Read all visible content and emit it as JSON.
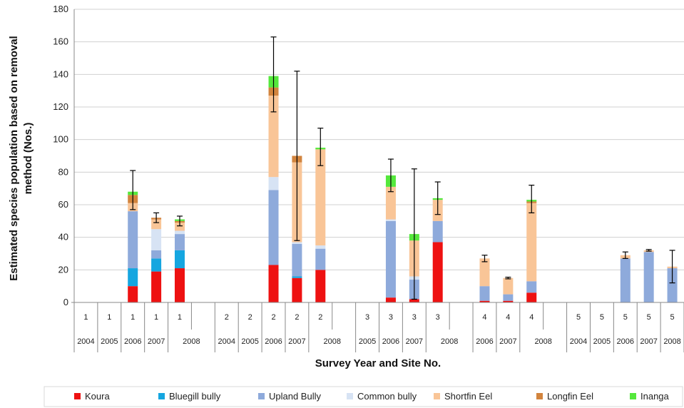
{
  "chart_data": {
    "type": "bar",
    "stacked": true,
    "title": "",
    "xlabel": "Survey Year and Site No.",
    "ylabel_lines": [
      "Estimated species population based on removal",
      "method (Nos.)"
    ],
    "ylim": [
      0,
      180
    ],
    "yticks": [
      0,
      20,
      40,
      60,
      80,
      100,
      120,
      140,
      160,
      180
    ],
    "grid": true,
    "legend_position": "bottom",
    "site_labels": [
      "1",
      "1",
      "1",
      "1",
      "1",
      "",
      "2",
      "2",
      "2",
      "2",
      "2",
      "",
      "3",
      "3",
      "3",
      "3",
      "",
      "4",
      "4",
      "4",
      "",
      "5",
      "5",
      "5",
      "5",
      "5"
    ],
    "year_groups": [
      {
        "label": "2004",
        "start": 0,
        "end": 1
      },
      {
        "label": "2005",
        "start": 1,
        "end": 2
      },
      {
        "label": "2006",
        "start": 2,
        "end": 3
      },
      {
        "label": "2007",
        "start": 3,
        "end": 4
      },
      {
        "label": "2008",
        "start": 4,
        "end": 6
      },
      {
        "label": "2004",
        "start": 6,
        "end": 7
      },
      {
        "label": "2005",
        "start": 7,
        "end": 8
      },
      {
        "label": "2006",
        "start": 8,
        "end": 9
      },
      {
        "label": "2007",
        "start": 9,
        "end": 10
      },
      {
        "label": "2008",
        "start": 10,
        "end": 12
      },
      {
        "label": "2005",
        "start": 12,
        "end": 13
      },
      {
        "label": "2006",
        "start": 13,
        "end": 14
      },
      {
        "label": "2007",
        "start": 14,
        "end": 15
      },
      {
        "label": "2008",
        "start": 15,
        "end": 17
      },
      {
        "label": "2006",
        "start": 17,
        "end": 18
      },
      {
        "label": "2007",
        "start": 18,
        "end": 19
      },
      {
        "label": "2008",
        "start": 19,
        "end": 21
      },
      {
        "label": "2004",
        "start": 21,
        "end": 22
      },
      {
        "label": "2005",
        "start": 22,
        "end": 23
      },
      {
        "label": "2006",
        "start": 23,
        "end": 24
      },
      {
        "label": "2007",
        "start": 24,
        "end": 25
      },
      {
        "label": "2008",
        "start": 25,
        "end": 26
      }
    ],
    "series": [
      {
        "name": "Koura",
        "color": "#ee1111",
        "values": [
          0,
          0,
          10,
          19,
          21,
          0,
          0,
          0,
          23,
          15,
          20,
          0,
          0,
          3,
          2,
          37,
          0,
          1,
          1,
          6,
          0,
          0,
          0,
          0,
          0,
          0
        ]
      },
      {
        "name": "Bluegill bully",
        "color": "#15a6e0",
        "values": [
          0,
          0,
          11,
          8,
          11,
          0,
          0,
          0,
          0,
          1,
          0,
          0,
          0,
          0,
          0,
          0,
          0,
          0,
          0,
          0,
          0,
          0,
          0,
          0,
          0,
          0
        ]
      },
      {
        "name": "Upland Bully",
        "color": "#8eaadb",
        "values": [
          0,
          0,
          35,
          5,
          10,
          0,
          0,
          0,
          46,
          20,
          13,
          0,
          0,
          47,
          12,
          13,
          0,
          9,
          4,
          7,
          0,
          0,
          0,
          27,
          31,
          21
        ]
      },
      {
        "name": "Common bully",
        "color": "#d7e3f4",
        "values": [
          0,
          0,
          0,
          13,
          2,
          0,
          0,
          0,
          8,
          1,
          2,
          0,
          0,
          1,
          2,
          0,
          0,
          0,
          0,
          0,
          0,
          0,
          0,
          0,
          0,
          0
        ]
      },
      {
        "name": "Shortfin Eel",
        "color": "#f9c597",
        "values": [
          0,
          0,
          5,
          6,
          5,
          0,
          0,
          0,
          50,
          49,
          59,
          0,
          0,
          20,
          22,
          13,
          0,
          17,
          10,
          48,
          0,
          0,
          0,
          2,
          1,
          1
        ]
      },
      {
        "name": "Longfin Eel",
        "color": "#d2843e",
        "values": [
          0,
          0,
          5,
          1,
          1,
          0,
          0,
          0,
          5,
          4,
          0,
          0,
          0,
          0,
          0,
          0,
          0,
          0,
          0,
          1,
          0,
          0,
          0,
          0,
          0,
          0
        ]
      },
      {
        "name": "Inanga",
        "color": "#55e83c",
        "values": [
          0,
          0,
          2,
          0,
          1,
          0,
          0,
          0,
          7,
          0,
          1,
          0,
          0,
          7,
          4,
          1,
          0,
          0,
          0,
          1,
          0,
          0,
          0,
          0,
          0,
          0
        ]
      }
    ],
    "error_bars": [
      {
        "index": 2,
        "center": 69,
        "low": 57,
        "high": 81
      },
      {
        "index": 3,
        "center": 52,
        "low": 49,
        "high": 55
      },
      {
        "index": 4,
        "center": 50,
        "low": 47,
        "high": 53
      },
      {
        "index": 8,
        "center": 140,
        "low": 117,
        "high": 163
      },
      {
        "index": 9,
        "center": 90,
        "low": 38,
        "high": 142
      },
      {
        "index": 10,
        "center": 95,
        "low": 84,
        "high": 107
      },
      {
        "index": 13,
        "center": 78,
        "low": 68,
        "high": 88
      },
      {
        "index": 14,
        "center": 42,
        "low": 2,
        "high": 82
      },
      {
        "index": 15,
        "center": 64,
        "low": 54,
        "high": 74
      },
      {
        "index": 17,
        "center": 27,
        "low": 25,
        "high": 29
      },
      {
        "index": 18,
        "center": 15,
        "low": 14.5,
        "high": 15.5
      },
      {
        "index": 19,
        "center": 63,
        "low": 55,
        "high": 72
      },
      {
        "index": 23,
        "center": 29,
        "low": 27,
        "high": 31
      },
      {
        "index": 24,
        "center": 32,
        "low": 31.5,
        "high": 32.5
      },
      {
        "index": 25,
        "center": 22,
        "low": 12,
        "high": 32
      }
    ]
  }
}
